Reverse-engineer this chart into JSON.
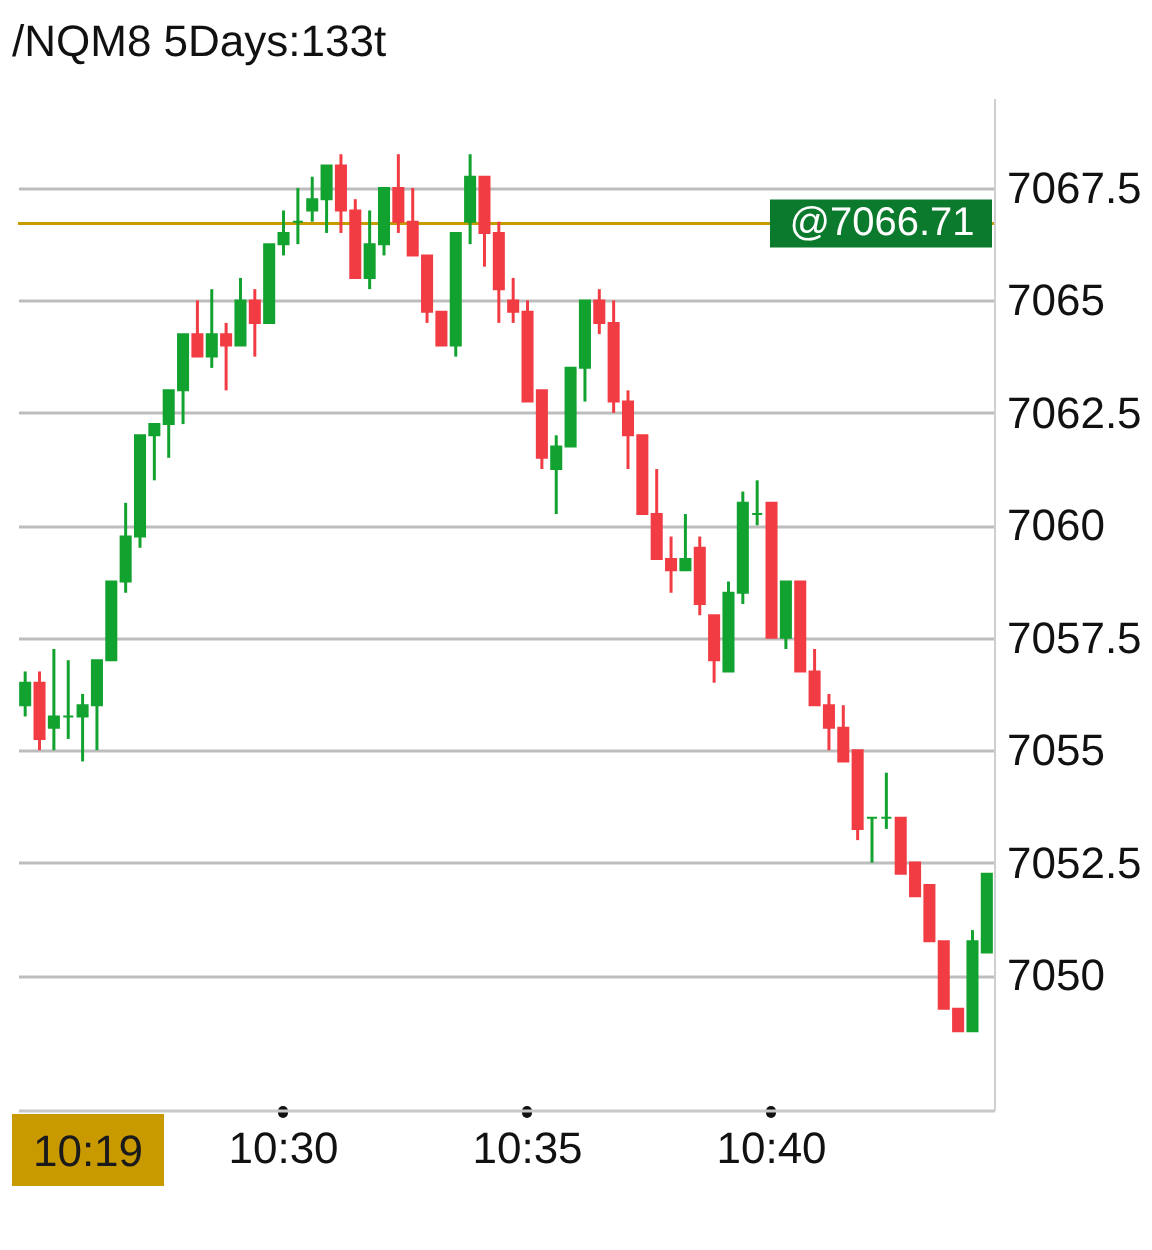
{
  "chart_data": {
    "type": "candlestick",
    "title": "/NQM8 5Days:133t",
    "categories": [
      null,
      null,
      null,
      null,
      null,
      null,
      null,
      null,
      null,
      null,
      null,
      null,
      null,
      null,
      null,
      null,
      null,
      null,
      "10:30",
      null,
      null,
      null,
      null,
      null,
      null,
      null,
      null,
      null,
      null,
      null,
      null,
      null,
      null,
      null,
      null,
      "10:35",
      null,
      null,
      null,
      null,
      null,
      null,
      null,
      null,
      null,
      null,
      null,
      null,
      null,
      null,
      null,
      null,
      "10:40",
      null,
      null,
      null,
      null,
      null,
      null,
      null,
      null,
      null,
      null,
      null,
      null,
      null,
      null,
      null
    ],
    "ohlc": [
      [
        7056.0,
        7056.75,
        7055.75,
        7056.5
      ],
      [
        7056.5,
        7056.75,
        7055.0,
        7055.25
      ],
      [
        7055.5,
        7057.25,
        7055.0,
        7055.75
      ],
      [
        7055.75,
        7057.0,
        7055.25,
        7055.75
      ],
      [
        7055.75,
        7056.25,
        7054.75,
        7056.0
      ],
      [
        7056.0,
        7057.0,
        7055.0,
        7057.0
      ],
      [
        7057.0,
        7058.75,
        7057.0,
        7058.75
      ],
      [
        7058.75,
        7060.5,
        7058.5,
        7059.75
      ],
      [
        7059.75,
        7062.0,
        7059.5,
        7062.0
      ],
      [
        7062.0,
        7062.25,
        7061.0,
        7062.25
      ],
      [
        7062.25,
        7063.0,
        7061.5,
        7063.0
      ],
      [
        7063.0,
        7064.25,
        7062.25,
        7064.25
      ],
      [
        7064.25,
        7065.0,
        7063.75,
        7063.75
      ],
      [
        7063.75,
        7065.25,
        7063.5,
        7064.25
      ],
      [
        7064.25,
        7064.5,
        7063.0,
        7064.0
      ],
      [
        7064.0,
        7065.5,
        7064.0,
        7065.0
      ],
      [
        7065.0,
        7065.25,
        7063.75,
        7064.5
      ],
      [
        7064.5,
        7066.25,
        7064.5,
        7066.25
      ],
      [
        7066.25,
        7067.0,
        7066.0,
        7066.5
      ],
      [
        7066.75,
        7067.5,
        7066.25,
        7066.75
      ],
      [
        7067.0,
        7067.75,
        7066.75,
        7067.25
      ],
      [
        7067.25,
        7068.0,
        7066.5,
        7068.0
      ],
      [
        7068.0,
        7068.25,
        7066.5,
        7067.0
      ],
      [
        7067.0,
        7067.25,
        7065.5,
        7065.5
      ],
      [
        7065.5,
        7067.0,
        7065.25,
        7066.25
      ],
      [
        7066.25,
        7067.5,
        7066.0,
        7067.5
      ],
      [
        7067.5,
        7068.25,
        7066.5,
        7066.75
      ],
      [
        7066.75,
        7067.5,
        7066.0,
        7066.0
      ],
      [
        7066.0,
        7066.0,
        7064.5,
        7064.75
      ],
      [
        7064.75,
        7064.75,
        7064.0,
        7064.0
      ],
      [
        7064.0,
        7066.5,
        7063.75,
        7066.5
      ],
      [
        7066.75,
        7068.25,
        7066.25,
        7067.75
      ],
      [
        7067.75,
        7067.75,
        7065.75,
        7066.5
      ],
      [
        7066.5,
        7066.75,
        7064.5,
        7065.25
      ],
      [
        7065.0,
        7065.5,
        7064.5,
        7064.75
      ],
      [
        7064.75,
        7065.0,
        7062.75,
        7062.75
      ],
      [
        7063.0,
        7063.0,
        7061.25,
        7061.5
      ],
      [
        7061.25,
        7062.0,
        7060.25,
        7061.75
      ],
      [
        7061.75,
        7063.5,
        7061.75,
        7063.5
      ],
      [
        7063.5,
        7065.0,
        7062.75,
        7065.0
      ],
      [
        7065.0,
        7065.25,
        7064.25,
        7064.5
      ],
      [
        7064.5,
        7065.0,
        7062.5,
        7062.75
      ],
      [
        7062.75,
        7063.0,
        7061.25,
        7062.0
      ],
      [
        7062.0,
        7062.0,
        7060.25,
        7060.25
      ],
      [
        7060.25,
        7061.25,
        7059.25,
        7059.25
      ],
      [
        7059.25,
        7059.75,
        7058.5,
        7059.0
      ],
      [
        7059.0,
        7060.25,
        7059.0,
        7059.25
      ],
      [
        7059.5,
        7059.75,
        7058.0,
        7058.25
      ],
      [
        7058.0,
        7058.0,
        7056.5,
        7057.0
      ],
      [
        7056.75,
        7058.75,
        7056.75,
        7058.5
      ],
      [
        7058.5,
        7060.75,
        7058.25,
        7060.5
      ],
      [
        7060.25,
        7061.0,
        7060.0,
        7060.25
      ],
      [
        7060.5,
        7060.5,
        7057.5,
        7057.5
      ],
      [
        7057.5,
        7058.75,
        7057.25,
        7058.75
      ],
      [
        7058.75,
        7058.75,
        7056.75,
        7056.75
      ],
      [
        7056.75,
        7057.25,
        7056.0,
        7056.0
      ],
      [
        7056.0,
        7056.25,
        7055.0,
        7055.5
      ],
      [
        7055.5,
        7056.0,
        7054.75,
        7054.75
      ],
      [
        7055.0,
        7055.0,
        7053.0,
        7053.25
      ],
      [
        7053.5,
        7053.5,
        7052.5,
        7053.5
      ],
      [
        7053.5,
        7054.5,
        7053.25,
        7053.5
      ],
      [
        7053.5,
        7053.5,
        7052.25,
        7052.25
      ],
      [
        7052.5,
        7052.5,
        7051.75,
        7051.75
      ],
      [
        7052.0,
        7052.0,
        7050.75,
        7050.75
      ],
      [
        7050.75,
        7050.75,
        7049.25,
        7049.25
      ],
      [
        7049.25,
        7049.25,
        7048.75,
        7048.75
      ],
      [
        7048.75,
        7051.0,
        7048.75,
        7050.75
      ],
      [
        7050.5,
        7052.25,
        7050.5,
        7052.25
      ]
    ],
    "colors": [
      "#12a22f",
      "#f23c44",
      "#12a22f",
      "#12a22f",
      "#12a22f",
      "#12a22f",
      "#12a22f",
      "#12a22f",
      "#12a22f",
      "#12a22f",
      "#12a22f",
      "#12a22f",
      "#f23c44",
      "#12a22f",
      "#f23c44",
      "#12a22f",
      "#f23c44",
      "#12a22f",
      "#12a22f",
      "#12a22f",
      "#12a22f",
      "#12a22f",
      "#f23c44",
      "#f23c44",
      "#12a22f",
      "#12a22f",
      "#f23c44",
      "#f23c44",
      "#f23c44",
      "#f23c44",
      "#12a22f",
      "#12a22f",
      "#f23c44",
      "#f23c44",
      "#f23c44",
      "#f23c44",
      "#f23c44",
      "#12a22f",
      "#12a22f",
      "#12a22f",
      "#f23c44",
      "#f23c44",
      "#f23c44",
      "#f23c44",
      "#f23c44",
      "#f23c44",
      "#12a22f",
      "#f23c44",
      "#f23c44",
      "#12a22f",
      "#12a22f",
      "#12a22f",
      "#f23c44",
      "#12a22f",
      "#f23c44",
      "#f23c44",
      "#f23c44",
      "#f23c44",
      "#f23c44",
      "#12a22f",
      "#12a22f",
      "#f23c44",
      "#f23c44",
      "#f23c44",
      "#f23c44",
      "#f23c44",
      "#12a22f",
      "#12a22f"
    ],
    "ylim": [
      7047.0,
      7069.5
    ],
    "yticks": [
      7050,
      7052.5,
      7055,
      7057.5,
      7060,
      7062.5,
      7065,
      7067.5
    ],
    "grid": "y",
    "ref_lines": [
      {
        "axis": "y",
        "value": 7066.71,
        "label": "@7066.71",
        "color": "#c89b00"
      }
    ],
    "annotations": [
      "10:19"
    ]
  }
}
